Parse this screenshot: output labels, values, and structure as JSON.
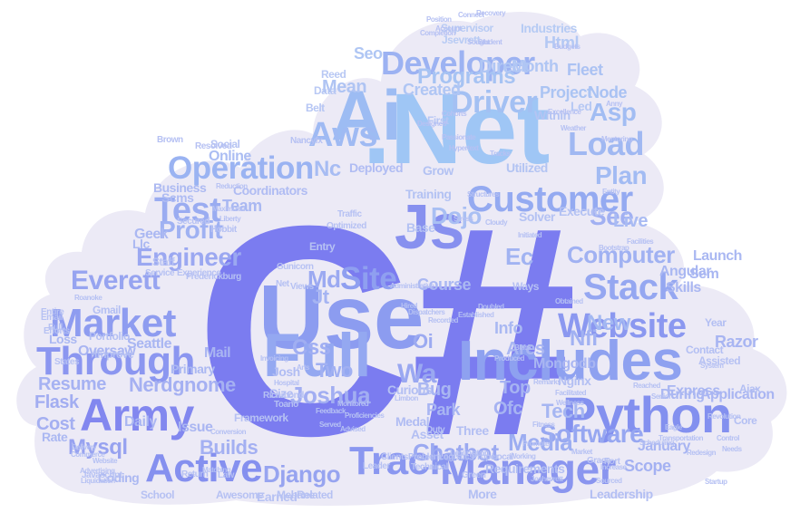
{
  "colors": {
    "background": "#ffffff",
    "cloud": "#eceaf6",
    "accent_light": "#a6c8f4",
    "accent_mid": "#8aa6ef",
    "accent_deep": "#7d7ef0",
    "accent_soft": "#b9c2f3"
  },
  "words": [
    {
      "text": "C#",
      "color": "#7b7cf0"
    },
    {
      "text": ".Net",
      "color": "#9fc6f5"
    },
    {
      "text": "Use",
      "color": "#8c9cf0"
    },
    {
      "text": "Js",
      "color": "#8790ef"
    },
    {
      "text": "Ai",
      "color": "#9dbcf3"
    },
    {
      "text": "Full",
      "color": "#94a8f1"
    },
    {
      "text": "Includes",
      "color": "#8ea1f0"
    },
    {
      "text": "Python",
      "color": "#8390ef"
    },
    {
      "text": "Army",
      "color": "#8287ef"
    },
    {
      "text": "Manager",
      "color": "#8a95ef"
    },
    {
      "text": "Active",
      "color": "#8590ef"
    },
    {
      "text": "Track",
      "color": "#8a97f0"
    },
    {
      "text": "Through",
      "color": "#8b96f0"
    },
    {
      "text": "Market",
      "color": "#8e9cf0"
    },
    {
      "text": "Website",
      "color": "#8b98f0"
    },
    {
      "text": "Stack",
      "color": "#95a7f1"
    },
    {
      "text": "Site",
      "color": "#8f9ff0"
    },
    {
      "text": "Developer",
      "color": "#9cb2f2"
    },
    {
      "text": "Customer",
      "color": "#94aaf1"
    },
    {
      "text": "Test",
      "color": "#9aacf1"
    },
    {
      "text": "Operation",
      "color": "#9ab3f2"
    },
    {
      "text": "Aws",
      "color": "#9fbaf3"
    },
    {
      "text": "Everett",
      "color": "#97a4f0"
    },
    {
      "text": "Load",
      "color": "#a0b8f2"
    },
    {
      "text": "Driver",
      "color": "#a3c0f3"
    },
    {
      "text": "Software",
      "color": "#97a7f1"
    },
    {
      "text": "Media",
      "color": "#9cadf1"
    },
    {
      "text": "Mysql",
      "color": "#97a2f0"
    },
    {
      "text": "Django",
      "color": "#97a4f0"
    },
    {
      "text": "Chatbot",
      "color": "#9ba9f1"
    },
    {
      "text": "Computer",
      "color": "#a0b1f2"
    },
    {
      "text": "Engineer",
      "color": "#9ba8f1"
    },
    {
      "text": "Profit",
      "color": "#9fb1f2"
    },
    {
      "text": "Programs",
      "color": "#a6c3f3"
    },
    {
      "text": "Plan",
      "color": "#a2bbf3"
    },
    {
      "text": "Asp",
      "color": "#a2bdf3"
    },
    {
      "text": "Wa",
      "color": "#9aa8f1"
    },
    {
      "text": "Oi",
      "color": "#9caaf1"
    },
    {
      "text": "Two",
      "color": "#a1b0f2"
    },
    {
      "text": "Md",
      "color": "#9ba9f1"
    },
    {
      "text": "Css",
      "color": "#a0aef2"
    },
    {
      "text": "Jt",
      "color": "#a5b4f2"
    },
    {
      "text": "Ec",
      "color": "#a1b3f2"
    },
    {
      "text": "See",
      "color": "#a1b0f2"
    },
    {
      "text": "New",
      "color": "#a3b8f2"
    },
    {
      "text": "Nfi",
      "color": "#a1b1f2"
    },
    {
      "text": "Tech",
      "color": "#a6b6f2"
    },
    {
      "text": "Joshua",
      "color": "#a2aef2"
    },
    {
      "text": "Nc",
      "color": "#a7bcf3"
    },
    {
      "text": "Dojo",
      "color": "#a9bff3"
    },
    {
      "text": "Team",
      "color": "#a9b8f2"
    },
    {
      "text": "Online",
      "color": "#abbdf3"
    },
    {
      "text": "Live",
      "color": "#a9bbf3"
    },
    {
      "text": "Node",
      "color": "#a9c2f3"
    },
    {
      "text": "Project",
      "color": "#abc4f3"
    },
    {
      "text": "Fleet",
      "color": "#abc2f3"
    },
    {
      "text": "Seo",
      "color": "#afc6f4"
    },
    {
      "text": "Mean",
      "color": "#afc4f3"
    },
    {
      "text": "Created",
      "color": "#b0c6f4"
    },
    {
      "text": "Direct",
      "color": "#b0c6f4"
    },
    {
      "text": "Month",
      "color": "#b0c6f4"
    },
    {
      "text": "Industries",
      "color": "#b6cbf4"
    },
    {
      "text": "Html",
      "color": "#b3c8f4"
    },
    {
      "text": "Ares",
      "color": "#a9b6f2"
    },
    {
      "text": "Info",
      "color": "#a9b8f2"
    },
    {
      "text": "Bug",
      "color": "#a9b6f2"
    },
    {
      "text": "Park",
      "color": "#a8b5f2"
    },
    {
      "text": "Course",
      "color": "#aab8f2"
    },
    {
      "text": "Top",
      "color": "#a6b3f2"
    },
    {
      "text": "Ofc",
      "color": "#a6b3f2"
    },
    {
      "text": "Builds",
      "color": "#a4b0f2"
    },
    {
      "text": "Resume",
      "color": "#a6b2f2"
    },
    {
      "text": "Flask",
      "color": "#a2adf1"
    },
    {
      "text": "Cost",
      "color": "#a4aff1"
    },
    {
      "text": "Nerdgnome",
      "color": "#a5b0f2"
    },
    {
      "text": "Scope",
      "color": "#a4b1f2"
    },
    {
      "text": "January",
      "color": "#a7b4f2"
    },
    {
      "text": "Express",
      "color": "#a9b6f2"
    },
    {
      "text": "Razor",
      "color": "#a8b5f2"
    },
    {
      "text": "Mongodb",
      "color": "#a9b6f2"
    },
    {
      "text": "During",
      "color": "#aab7f2"
    },
    {
      "text": "Application",
      "color": "#a9b5f2"
    },
    {
      "text": "Angular",
      "color": "#a9b7f2"
    },
    {
      "text": "Launch",
      "color": "#aab8f2"
    },
    {
      "text": "Skills",
      "color": "#aab7f2"
    },
    {
      "text": "Sem",
      "color": "#a8b6f2"
    },
    {
      "text": "Seattle",
      "color": "#a9b6f2"
    },
    {
      "text": "Oversaw",
      "color": "#a8b4f2"
    },
    {
      "text": "Mail",
      "color": "#a9b5f2"
    },
    {
      "text": "Daily",
      "color": "#aab6f2"
    },
    {
      "text": "Issue",
      "color": "#aab6f2"
    },
    {
      "text": "Coding",
      "color": "#abb8f2"
    },
    {
      "text": "Rate",
      "color": "#abb8f2"
    },
    {
      "text": "Loss",
      "color": "#abb8f2"
    },
    {
      "text": "Primary",
      "color": "#abb8f2"
    },
    {
      "text": "Geek",
      "color": "#abb8f2"
    },
    {
      "text": "Llc",
      "color": "#abb8f2"
    },
    {
      "text": "Business",
      "color": "#adbaf2"
    },
    {
      "text": "Scms",
      "color": "#afbcf3"
    },
    {
      "text": "Deployed",
      "color": "#b0bcf3"
    },
    {
      "text": "Coordinators",
      "color": "#b0bcf3"
    },
    {
      "text": "Grow",
      "color": "#b3c2f3"
    },
    {
      "text": "Training",
      "color": "#b3c2f3"
    },
    {
      "text": "Utilized",
      "color": "#b3c4f3"
    },
    {
      "text": "Base",
      "color": "#b4c2f3"
    },
    {
      "text": "Solver",
      "color": "#b4c2f3"
    },
    {
      "text": "Execute",
      "color": "#b4c2f3"
    },
    {
      "text": "Led",
      "color": "#b6c8f4"
    },
    {
      "text": "Within",
      "color": "#b4c4f3"
    },
    {
      "text": "First",
      "color": "#b6c6f4"
    },
    {
      "text": "Belt",
      "color": "#b6c6f4"
    },
    {
      "text": "Data",
      "color": "#b8c8f4"
    },
    {
      "text": "Reed",
      "color": "#b8c8f4"
    },
    {
      "text": "Supervisor",
      "color": "#b8cbf4"
    },
    {
      "text": "Jsevrett",
      "color": "#b8cbf4"
    },
    {
      "text": "Social",
      "color": "#b6c4f3"
    },
    {
      "text": "Josh",
      "color": "#b0bcf3"
    },
    {
      "text": "Size",
      "color": "#b0bcf3"
    },
    {
      "text": "Medal",
      "color": "#b0bcf3"
    },
    {
      "text": "Asset",
      "color": "#b3bff3"
    },
    {
      "text": "Three",
      "color": "#b3bff3"
    },
    {
      "text": "More",
      "color": "#b3bff3"
    },
    {
      "text": "Requirements",
      "color": "#b3bff3"
    },
    {
      "text": "Leadership",
      "color": "#b3bff3"
    },
    {
      "text": "Earned",
      "color": "#b6c1f3"
    },
    {
      "text": "Related",
      "color": "#b6c1f3"
    },
    {
      "text": "Awesome",
      "color": "#b6c1f3"
    },
    {
      "text": "Mebane",
      "color": "#b6c1f3"
    },
    {
      "text": "School",
      "color": "#b6c1f3"
    },
    {
      "text": "Framework",
      "color": "#b6c1f3"
    },
    {
      "text": "Curious",
      "color": "#b3bff3"
    },
    {
      "text": "Nginx",
      "color": "#b3bff3"
    },
    {
      "text": "Improve",
      "color": "#b3bff3"
    },
    {
      "text": "Portfolio",
      "color": "#b3bff3"
    },
    {
      "text": "Gmail",
      "color": "#b3bff3"
    },
    {
      "text": "Contact",
      "color": "#b3bff3"
    },
    {
      "text": "Year",
      "color": "#b3bff3"
    },
    {
      "text": "Core",
      "color": "#b3bff3"
    },
    {
      "text": "Ajax",
      "color": "#b3bff3"
    },
    {
      "text": "Assisted",
      "color": "#b6c1f3"
    },
    {
      "text": "Entry",
      "color": "#b6c1f3"
    },
    {
      "text": "Views",
      "color": "#b6c1f3"
    },
    {
      "text": "Net",
      "color": "#b6c1f3"
    },
    {
      "text": "Gunicorn",
      "color": "#b6c1f3"
    },
    {
      "text": "Staff",
      "color": "#b6c1f3"
    },
    {
      "text": "Ways",
      "color": "#b6c1f3"
    },
    {
      "text": "Local",
      "color": "#b6c1f3"
    },
    {
      "text": "Grace",
      "color": "#b6c1f3"
    },
    {
      "text": "Fort",
      "color": "#b6c1f3"
    },
    {
      "text": "Green",
      "color": "#b6c1f3"
    },
    {
      "text": "Proper",
      "color": "#b6c1f3"
    },
    {
      "text": "Duty",
      "color": "#b6c1f3"
    },
    {
      "text": "Lexington",
      "color": "#b6c1f3"
    },
    {
      "text": "Email",
      "color": "#b6c1f3"
    },
    {
      "text": "Full",
      "color": "#b6c1f3"
    },
    {
      "text": "Entire",
      "color": "#b6c1f3"
    },
    {
      "text": "Efforts",
      "color": "#b6c1f3"
    },
    {
      "text": "States",
      "color": "#b6c1f3"
    },
    {
      "text": "Javascript",
      "color": "#b6c1f3"
    },
    {
      "text": "Return",
      "color": "#b6c1f3"
    },
    {
      "text": "Law",
      "color": "#b6c1f3"
    },
    {
      "text": "Traffic",
      "color": "#b6c1f3"
    },
    {
      "text": "Optimized",
      "color": "#b6c1f3"
    },
    {
      "text": "Resolved",
      "color": "#b6c1f3"
    },
    {
      "text": "Brown",
      "color": "#b6c1f3"
    },
    {
      "text": "Secured",
      "color": "#b6c1f3"
    },
    {
      "text": "Service",
      "color": "#b6c1f3"
    },
    {
      "text": "Experience",
      "color": "#b6c1f3"
    },
    {
      "text": "Frederickburg",
      "color": "#b6c1f3"
    },
    {
      "text": "Nancyfx",
      "color": "#b6c1f3"
    },
    {
      "text": "Hobbit",
      "color": "#b6c1f3"
    },
    {
      "text": "Technical",
      "color": "#b6c1f3"
    },
    {
      "text": "Logistics",
      "color": "#b6c1f3"
    },
    {
      "text": "ClientsProblem",
      "color": "#b6c1f3"
    },
    {
      "text": "Leader",
      "color": "#b6c1f3"
    },
    {
      "text": "Toano",
      "color": "#b6c1f3"
    },
    {
      "text": "Richmond",
      "color": "#b6c1f3"
    },
    {
      "text": "Proficiencies",
      "color": "#b6c1f3"
    },
    {
      "text": "Advised",
      "color": "#b6c1f3"
    },
    {
      "text": "Black",
      "color": "#b6c1f3"
    },
    {
      "text": "Produced",
      "color": "#b6c1f3"
    },
    {
      "text": "Established",
      "color": "#b6c1f3"
    },
    {
      "text": "Hired",
      "color": "#b6c1f3"
    },
    {
      "text": "Cohorts",
      "color": "#b6c1f3"
    },
    {
      "text": "Passionate",
      "color": "#b6c1f3"
    },
    {
      "text": "Sought",
      "color": "#b6c1f3"
    },
    {
      "text": "Student",
      "color": "#b6c1f3"
    },
    {
      "text": "Excellence",
      "color": "#b6c1f3"
    },
    {
      "text": "Weather",
      "color": "#b6c1f3"
    },
    {
      "text": "Mentoring",
      "color": "#b6c1f3"
    },
    {
      "text": "Entity",
      "color": "#b6c1f3"
    },
    {
      "text": "Cloudy",
      "color": "#b6c1f3"
    },
    {
      "text": "Initiated",
      "color": "#b6c1f3"
    },
    {
      "text": "Facilities",
      "color": "#b6c1f3"
    },
    {
      "text": "Bootstrap",
      "color": "#b6c1f3"
    },
    {
      "text": "Obtained",
      "color": "#b6c1f3"
    },
    {
      "text": "Facilitated",
      "color": "#b6c1f3"
    },
    {
      "text": "Reached",
      "color": "#b6c1f3"
    },
    {
      "text": "Senior",
      "color": "#b6c1f3"
    },
    {
      "text": "System",
      "color": "#b6c1f3"
    },
    {
      "text": "Revolution",
      "color": "#b6c1f3"
    },
    {
      "text": "Control",
      "color": "#b6c1f3"
    },
    {
      "text": "Needs",
      "color": "#b6c1f3"
    },
    {
      "text": "Startup",
      "color": "#b6c1f3"
    },
    {
      "text": "Working",
      "color": "#b6c1f3"
    },
    {
      "text": "Fitness",
      "color": "#b6c1f3"
    },
    {
      "text": "Increase",
      "color": "#b6c1f3"
    },
    {
      "text": "Sourced",
      "color": "#b6c1f3"
    },
    {
      "text": "Market",
      "color": "#b6c1f3"
    },
    {
      "text": "Joshevrett",
      "color": "#b6c1f3"
    },
    {
      "text": "Promote",
      "color": "#b6c1f3"
    },
    {
      "text": "Wellness",
      "color": "#b6c1f3"
    },
    {
      "text": "Feedback",
      "color": "#b6c1f3"
    },
    {
      "text": "Served",
      "color": "#b6c1f3"
    },
    {
      "text": "Matching",
      "color": "#b6c1f3"
    },
    {
      "text": "Limbon",
      "color": "#b6c1f3"
    },
    {
      "text": "Monitored",
      "color": "#b6c1f3"
    },
    {
      "text": "Commerce",
      "color": "#b6c1f3"
    },
    {
      "text": "Conversion",
      "color": "#b6c1f3"
    },
    {
      "text": "Advertising",
      "color": "#b6c1f3"
    },
    {
      "text": "Liquidation",
      "color": "#b6c1f3"
    },
    {
      "text": "Delivery",
      "color": "#b6c1f3"
    },
    {
      "text": "Website",
      "color": "#b6c1f3"
    },
    {
      "text": "Roanoke",
      "color": "#b6c1f3"
    },
    {
      "text": "Maximized",
      "color": "#b6c1f3"
    },
    {
      "text": "Reduction",
      "color": "#b6c1f3"
    },
    {
      "text": "Liberty",
      "color": "#b6c1f3"
    },
    {
      "text": "Invoicing",
      "color": "#b6c1f3"
    },
    {
      "text": "Hospital",
      "color": "#b6c1f3"
    },
    {
      "text": "Recorded",
      "color": "#b6c1f3"
    },
    {
      "text": "Doubled",
      "color": "#b6c1f3"
    },
    {
      "text": "Remarks",
      "color": "#b6c1f3"
    },
    {
      "text": "Anny",
      "color": "#b6c1f3"
    },
    {
      "text": "Eagle",
      "color": "#b6c1f3"
    },
    {
      "text": "Transportation",
      "color": "#b6c1f3"
    },
    {
      "text": "Scheduling",
      "color": "#b6c1f3"
    },
    {
      "text": "Redesign",
      "color": "#b6c1f3"
    },
    {
      "text": "Budgets",
      "color": "#b6c1f3"
    },
    {
      "text": "Account",
      "color": "#b6c1f3"
    },
    {
      "text": "Position",
      "color": "#b6c1f3"
    },
    {
      "text": "Completion",
      "color": "#b6c1f3"
    },
    {
      "text": "Connect",
      "color": "#b6c1f3"
    },
    {
      "text": "Recovery",
      "color": "#b6c1f3"
    },
    {
      "text": "Stress",
      "color": "#b6c1f3"
    },
    {
      "text": "Dispatchers",
      "color": "#b6c1f3"
    },
    {
      "text": "Administrative",
      "color": "#b6c1f3"
    },
    {
      "text": "Hypertext",
      "color": "#b6c1f3"
    },
    {
      "text": "Tracks",
      "color": "#b6c1f3"
    },
    {
      "text": "Structures",
      "color": "#b6c1f3"
    },
    {
      "text": "Designed",
      "color": "#b6c1f3"
    },
    {
      "text": "Arts",
      "color": "#b6c1f3"
    },
    {
      "text": "Entering",
      "color": "#b6c1f3"
    }
  ]
}
